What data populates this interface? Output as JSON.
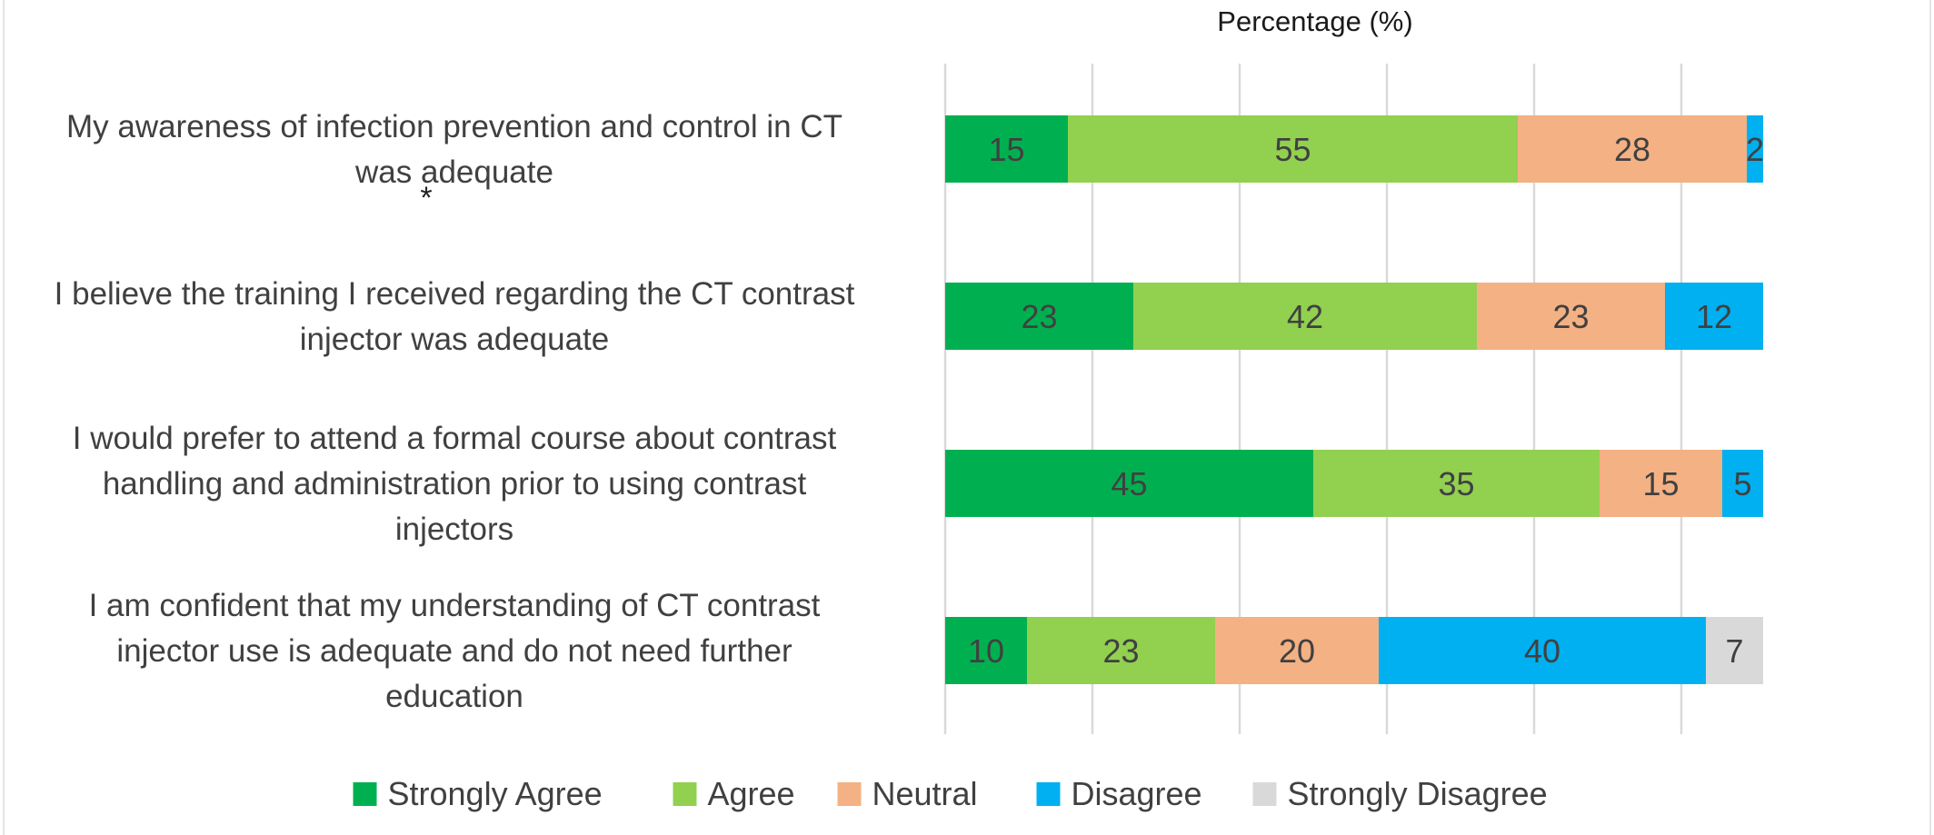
{
  "chart_data": {
    "type": "bar",
    "orientation": "horizontal",
    "stacked": true,
    "title": "",
    "xlabel": "Percentage (%)",
    "ylabel": "",
    "xlim": [
      0,
      100
    ],
    "grid": true,
    "legend_position": "bottom",
    "categories": [
      [
        "My awareness of infection prevention and control in CT",
        "was adequate"
      ],
      [
        "I believe the training I received regarding the CT contrast",
        "injector was adequate"
      ],
      [
        "I would prefer to attend a formal course about contrast",
        "handling and administration prior to using contrast",
        "injectors"
      ],
      [
        "I am confident that my understanding of CT contrast",
        "injector use is adequate and do not need further",
        "education"
      ]
    ],
    "annotations": [
      "*"
    ],
    "series": [
      {
        "name": "Strongly Agree",
        "color": "#00b050",
        "values": [
          15,
          23,
          45,
          10
        ]
      },
      {
        "name": "Agree",
        "color": "#92d050",
        "values": [
          55,
          42,
          35,
          23
        ]
      },
      {
        "name": "Neutral",
        "color": "#f4b183",
        "values": [
          28,
          23,
          15,
          20
        ]
      },
      {
        "name": "Disagree",
        "color": "#00b0f0",
        "values": [
          2,
          12,
          5,
          40
        ]
      },
      {
        "name": "Strongly Disagree",
        "color": "#d9d9d9",
        "values": [
          0,
          0,
          0,
          7
        ]
      }
    ]
  }
}
